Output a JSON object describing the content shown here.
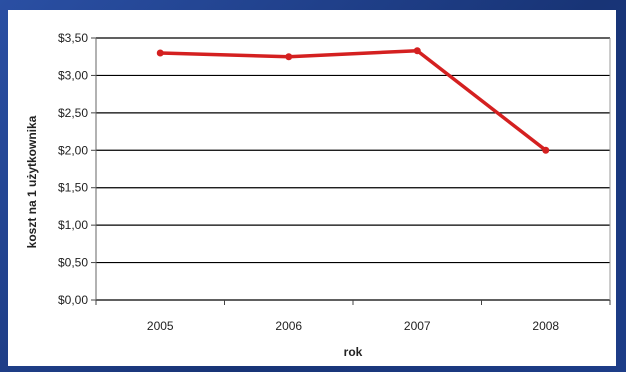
{
  "chart_data": {
    "type": "line",
    "categories": [
      "2005",
      "2006",
      "2007",
      "2008"
    ],
    "series": [
      {
        "values": [
          3.3,
          3.25,
          3.33,
          2.0
        ],
        "color": "#d42020"
      }
    ],
    "xlabel": "rok",
    "ylabel": "koszt na 1 użytkownika",
    "ylim": [
      0,
      3.5
    ],
    "yticks": [
      "$0,00",
      "$0,50",
      "$1,00",
      "$1,50",
      "$2,00",
      "$2,50",
      "$3,00",
      "$3,50"
    ],
    "grid": true,
    "legend": "none"
  }
}
